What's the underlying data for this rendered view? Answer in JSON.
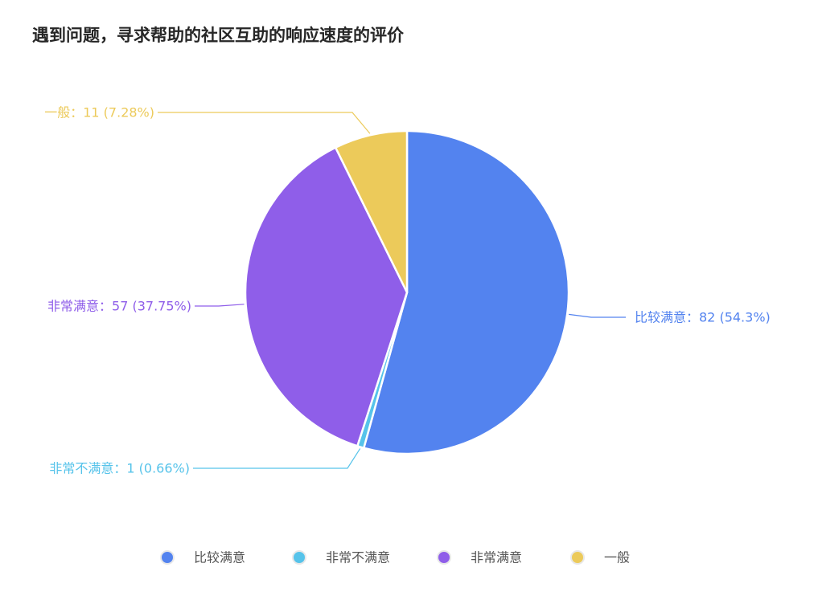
{
  "title": "遇到问题，寻求帮助的社区互助的响应速度的评价",
  "chart_data": {
    "type": "pie",
    "title": "遇到问题，寻求帮助的社区互助的响应速度的评价",
    "slices": [
      {
        "name": "比较满意",
        "value": 82,
        "label": "比较满意：82 (54.3%)",
        "color": "#5383ef"
      },
      {
        "name": "非常不满意",
        "value": 1,
        "label": "非常不满意：1 (0.66%)",
        "color": "#56c3ea"
      },
      {
        "name": "非常满意",
        "value": 57,
        "label": "非常满意：57 (37.75%)",
        "color": "#8f5ee9"
      },
      {
        "name": "一般",
        "value": 11,
        "label": "一般：11 (7.28%)",
        "color": "#ecca5a"
      }
    ],
    "legend_position": "bottom",
    "start_angle": "top, clockwise"
  }
}
